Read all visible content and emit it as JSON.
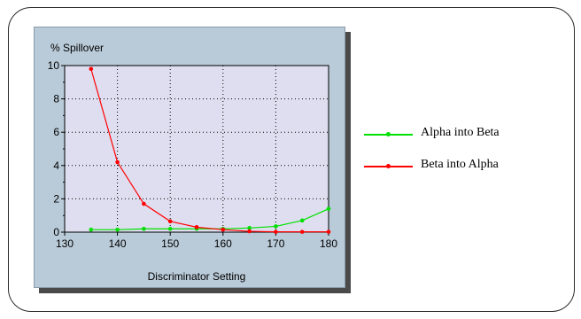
{
  "chart_data": {
    "type": "line",
    "title": "",
    "ylabel": "% Spillover",
    "xlabel": "Discriminator Setting",
    "xlim": [
      130,
      180
    ],
    "ylim": [
      0,
      10
    ],
    "xticks": [
      130,
      140,
      150,
      160,
      170,
      180
    ],
    "yticks": [
      0,
      2,
      4,
      6,
      8,
      10
    ],
    "grid": "dotted",
    "legend_position": "right",
    "series": [
      {
        "name": "Alpha into Beta",
        "color": "#00e000",
        "x": [
          135,
          140,
          145,
          150,
          155,
          160,
          165,
          170,
          175,
          180
        ],
        "values": [
          0.15,
          0.15,
          0.2,
          0.2,
          0.2,
          0.2,
          0.25,
          0.35,
          0.7,
          1.4
        ]
      },
      {
        "name": "Beta into Alpha",
        "color": "#ff0000",
        "x": [
          135,
          140,
          145,
          150,
          155,
          160,
          165,
          170,
          175,
          180
        ],
        "values": [
          9.8,
          4.2,
          1.7,
          0.65,
          0.3,
          0.15,
          0.05,
          0.02,
          0.02,
          0.02
        ]
      }
    ]
  }
}
